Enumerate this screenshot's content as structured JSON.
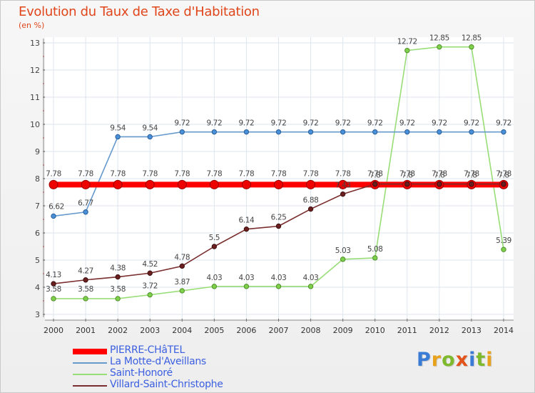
{
  "title": "Evolution du Taux de Taxe d'Habitation",
  "unit_label": "(en %)",
  "brand": {
    "logo_text": "Proxiti",
    "letter_colors": [
      "#3a7bd5",
      "#e8a21c",
      "#7fba2e",
      "#e2541b",
      "#3a7bd5",
      "#7fba2e",
      "#e8a21c"
    ]
  },
  "chart_data": {
    "type": "line",
    "x": [
      "2000",
      "2001",
      "2002",
      "2003",
      "2004",
      "2005",
      "2006",
      "2007",
      "2008",
      "2009",
      "2010",
      "2011",
      "2012",
      "2013",
      "2014"
    ],
    "ylim": [
      3,
      13
    ],
    "yticks": [
      "3",
      "4",
      "5",
      "6",
      "7",
      "8",
      "9",
      "10",
      "11",
      "12",
      "13"
    ],
    "grid": true,
    "legend_position": "bottom-left",
    "series": [
      {
        "name": "PIERRE-CHâTEL",
        "color": "#ff0000",
        "values": [
          7.78,
          7.78,
          7.78,
          7.78,
          7.78,
          7.78,
          7.78,
          7.78,
          7.78,
          7.78,
          7.78,
          7.78,
          7.78,
          7.78,
          7.78
        ],
        "labels": [
          "7.78",
          "7.78",
          "7.78",
          "7.78",
          "7.78",
          "7.78",
          "7.78",
          "7.78",
          "7.78",
          "7.78",
          "7.78",
          "7.78",
          "7.78",
          "7.78",
          "7.78"
        ]
      },
      {
        "name": "La Motte-d'Aveillans",
        "color": "#6699cc",
        "values": [
          6.62,
          6.77,
          9.54,
          9.54,
          9.72,
          9.72,
          9.72,
          9.72,
          9.72,
          9.72,
          9.72,
          9.72,
          9.72,
          9.72,
          9.72
        ],
        "labels": [
          "6.62",
          "6.77",
          "9.54",
          "9.54",
          "9.72",
          "9.72",
          "9.72",
          "9.72",
          "9.72",
          "9.72",
          "9.72",
          "9.72",
          "9.72",
          "9.72",
          "9.72"
        ]
      },
      {
        "name": "Saint-Honoré",
        "color": "#99dd77",
        "values": [
          3.58,
          3.58,
          3.58,
          3.72,
          3.87,
          4.03,
          4.03,
          4.03,
          4.03,
          5.03,
          5.08,
          12.72,
          12.85,
          12.85,
          5.39
        ],
        "labels": [
          "3.58",
          "3.58",
          "3.58",
          "3.72",
          "3.87",
          "4.03",
          "4.03",
          "4.03",
          "4.03",
          "5.03",
          "5.08",
          "12.72",
          "12.85",
          "12.85",
          "5.39"
        ]
      },
      {
        "name": "Villard-Saint-Christophe",
        "color": "#7a2e2e",
        "values": [
          4.13,
          4.27,
          4.38,
          4.52,
          4.78,
          5.5,
          6.14,
          6.25,
          6.88,
          7.43,
          7.8,
          7.8,
          7.8,
          7.8,
          7.8
        ],
        "labels": [
          "4.13",
          "4.27",
          "4.38",
          "4.52",
          "4.78",
          "5.5",
          "6.14",
          "6.25",
          "6.88",
          "7.43",
          "7.8",
          "7.8",
          "7.8",
          "7.8",
          "7.8"
        ]
      }
    ]
  }
}
